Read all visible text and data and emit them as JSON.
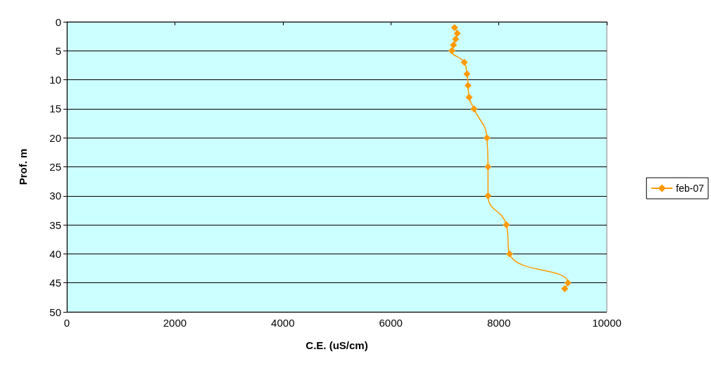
{
  "chart_data": {
    "type": "line",
    "xlabel": "C.E. (uS/cm)",
    "ylabel": "Prof. m",
    "x": [
      7180,
      7230,
      7200,
      7160,
      7130,
      7360,
      7410,
      7430,
      7450,
      7540,
      7780,
      7800,
      7800,
      8140,
      8200,
      9280,
      9220
    ],
    "series": [
      {
        "name": "feb-07",
        "color": "#ff9900",
        "values": [
          1,
          2,
          3,
          4,
          5,
          7,
          9,
          11,
          13,
          15,
          20,
          25,
          30,
          35,
          40,
          45,
          46
        ]
      }
    ],
    "xlim": [
      0,
      10000
    ],
    "xticks": [
      0,
      2000,
      4000,
      6000,
      8000,
      10000
    ],
    "ylim": [
      50,
      0
    ],
    "yticks": [
      0,
      5,
      10,
      15,
      20,
      25,
      30,
      35,
      40,
      45,
      50
    ],
    "grid": "y",
    "legend": "right",
    "marker": "diamond",
    "line_style": "solid"
  }
}
